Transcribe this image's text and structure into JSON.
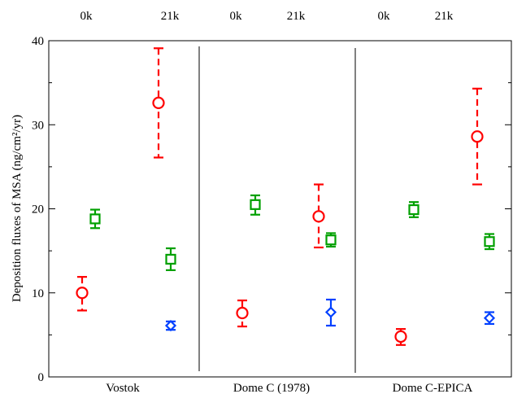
{
  "chart_data": {
    "type": "scatter",
    "title": "",
    "ylabel": "Deposition fluxes of MSA (ng/cm²/yr)",
    "ylim": [
      0,
      40
    ],
    "yticks": [
      0,
      10,
      20,
      30,
      40
    ],
    "grid": false,
    "top_labels": [
      "0k",
      "21k",
      "0k",
      "21k",
      "0k",
      "21k"
    ],
    "groups": [
      "Vostok",
      "Dome C (1978)",
      "Dome C-EPICA"
    ],
    "series": [
      {
        "marker": "circle",
        "color": "#ff0000",
        "dashed_errorbars": true,
        "points": [
          {
            "group": 0,
            "period": "0k",
            "y": 10.0,
            "low": 7.9,
            "high": 11.9
          },
          {
            "group": 0,
            "period": "21k",
            "y": 32.6,
            "low": 26.1,
            "high": 39.1
          },
          {
            "group": 1,
            "period": "0k",
            "y": 7.6,
            "low": 6.0,
            "high": 9.1
          },
          {
            "group": 1,
            "period": "21k",
            "y": 19.1,
            "low": 15.4,
            "high": 22.9
          },
          {
            "group": 2,
            "period": "0k",
            "y": 4.8,
            "low": 3.8,
            "high": 5.7
          },
          {
            "group": 2,
            "period": "21k",
            "y": 28.6,
            "low": 22.9,
            "high": 34.3
          }
        ]
      },
      {
        "marker": "square",
        "color": "#00a000",
        "dashed_errorbars": false,
        "points": [
          {
            "group": 0,
            "period": "0k",
            "y": 18.8,
            "low": 17.7,
            "high": 19.9
          },
          {
            "group": 0,
            "period": "21k",
            "y": 14.0,
            "low": 12.7,
            "high": 15.3
          },
          {
            "group": 1,
            "period": "0k",
            "y": 20.5,
            "low": 19.3,
            "high": 21.6
          },
          {
            "group": 1,
            "period": "21k",
            "y": 16.3,
            "low": 15.5,
            "high": 17.1
          },
          {
            "group": 2,
            "period": "0k",
            "y": 19.9,
            "low": 19.0,
            "high": 20.8
          },
          {
            "group": 2,
            "period": "21k",
            "y": 16.1,
            "low": 15.2,
            "high": 17.0
          }
        ]
      },
      {
        "marker": "diamond",
        "color": "#0040ff",
        "dashed_errorbars": false,
        "points": [
          {
            "group": 0,
            "period": "21k",
            "y": 6.1,
            "low": 5.6,
            "high": 6.6
          },
          {
            "group": 1,
            "period": "21k",
            "y": 7.7,
            "low": 6.1,
            "high": 9.2
          },
          {
            "group": 2,
            "period": "21k",
            "y": 7.0,
            "low": 6.3,
            "high": 7.7
          }
        ]
      }
    ]
  }
}
